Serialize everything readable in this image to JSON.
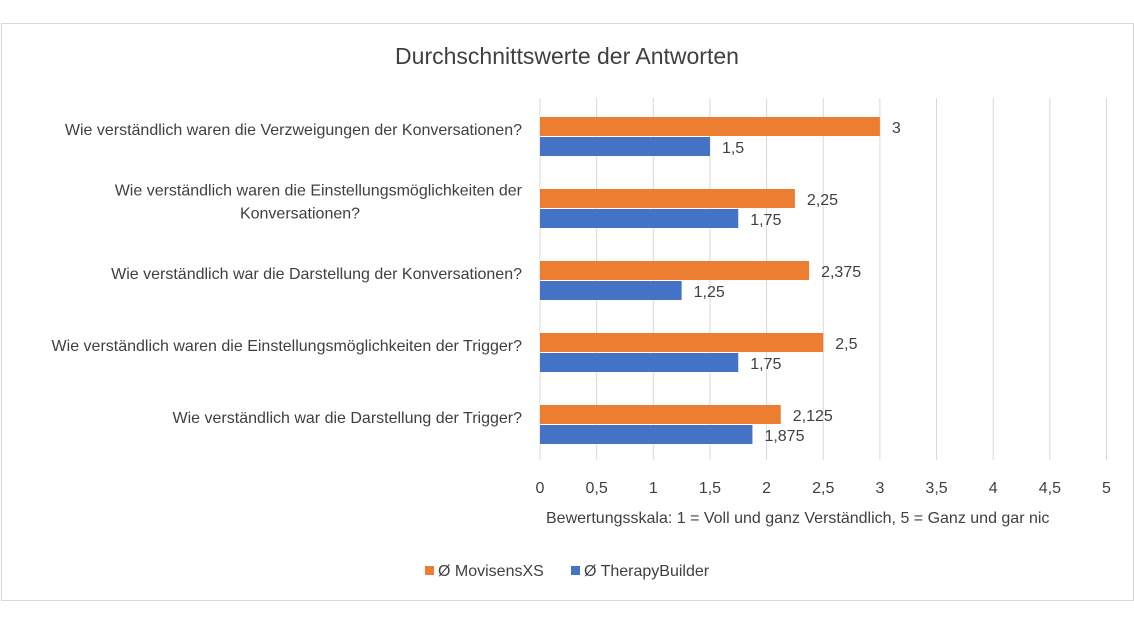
{
  "chart_data": {
    "type": "bar",
    "orientation": "horizontal",
    "title": "Durchschnittswerte der Antworten",
    "xlabel": "Bewertungsskala: 1 = Voll und ganz Verständlich, 5 = Ganz und gar nic",
    "ylabel": "",
    "xlim": [
      0,
      5
    ],
    "x_ticks": [
      "0",
      "0,5",
      "1",
      "1,5",
      "2",
      "2,5",
      "3",
      "3,5",
      "4",
      "4,5",
      "5"
    ],
    "grid": true,
    "legend_position": "bottom",
    "categories": [
      "Wie verständlich waren die Verzweigungen der Konversationen?",
      "Wie verständlich waren die Einstellungsmöglichkeiten der Konversationen?",
      "Wie verständlich war die Darstellung der Konversationen?",
      "Wie verständlich waren die Einstellungsmöglichkeiten der Trigger?",
      "Wie verständlich war die Darstellung der Trigger?"
    ],
    "category_lines": [
      [
        "Wie verständlich waren die Verzweigungen der Konversationen?"
      ],
      [
        "Wie verständlich waren die Einstellungsmöglichkeiten der",
        "Konversationen?"
      ],
      [
        "Wie verständlich war die Darstellung der Konversationen?"
      ],
      [
        "Wie verständlich waren die Einstellungsmöglichkeiten der Trigger?"
      ],
      [
        "Wie verständlich war die Darstellung der Trigger?"
      ]
    ],
    "series": [
      {
        "name": "Ø MovisensXS",
        "color": "#ed7d31",
        "values": [
          3,
          2.25,
          2.375,
          2.5,
          2.125
        ],
        "labels": [
          "3",
          "2,25",
          "2,375",
          "2,5",
          "2,125"
        ]
      },
      {
        "name": "Ø TherapyBuilder",
        "color": "#4472c4",
        "values": [
          1.5,
          1.75,
          1.25,
          1.75,
          1.875
        ],
        "labels": [
          "1,5",
          "1,75",
          "1,25",
          "1,75",
          "1,875"
        ]
      }
    ],
    "colors": {
      "grid": "#d9d9d9",
      "text": "#404040"
    }
  }
}
